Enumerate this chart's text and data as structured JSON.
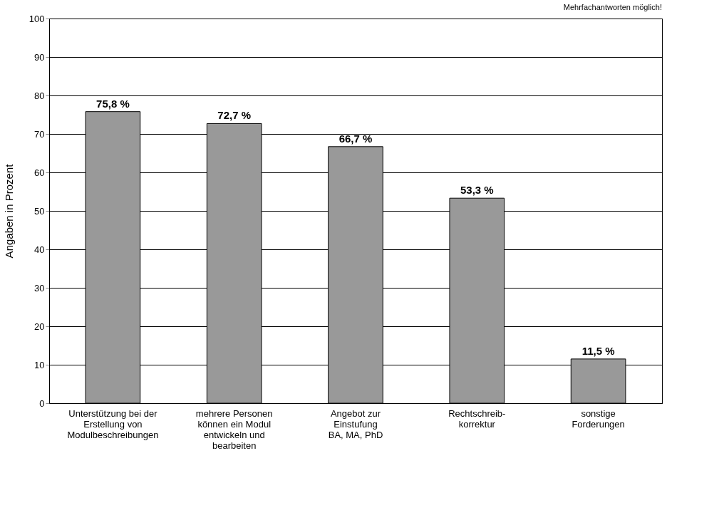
{
  "chart_data": {
    "type": "bar",
    "categories": [
      "Unterstützung bei der\nErstellung von\nModulbeschreibungen",
      "mehrere Personen\nkönnen ein Modul\nentwickeln und\nbearbeiten",
      "Angebot zur\nEinstufung\nBA, MA, PhD",
      "Rechtschreib-\nkorrektur",
      "sonstige\nForderungen"
    ],
    "values": [
      75.8,
      72.7,
      66.7,
      53.3,
      11.5
    ],
    "value_labels": [
      "75,8 %",
      "72,7 %",
      "66,7 %",
      "53,3 %",
      "11,5 %"
    ],
    "color": "#999999",
    "ylabel": "Angaben in Prozent",
    "annotations": [
      "Mehrfachantworten möglich!"
    ],
    "ylim": [
      0,
      100
    ],
    "yticks": [
      0,
      10,
      20,
      30,
      40,
      50,
      60,
      70,
      80,
      90,
      100
    ],
    "grid": "y"
  }
}
